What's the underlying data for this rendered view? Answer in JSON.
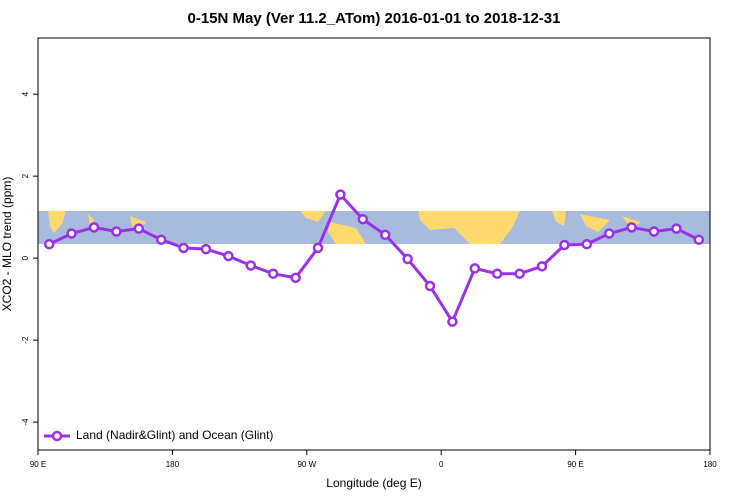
{
  "chart_data": {
    "type": "line",
    "title": "0-15N May (Ver 11.2_ATom)   2016-01-01 to 2018-12-31",
    "xlabel": "Longitude (deg E)",
    "ylabel": "XCO2 - MLO trend (ppm)",
    "x": [
      97.5,
      112.5,
      127.5,
      142.5,
      157.5,
      172.5,
      187.5,
      202.5,
      217.5,
      232.5,
      247.5,
      262.5,
      277.5,
      292.5,
      307.5,
      322.5,
      337.5,
      352.5,
      367.5,
      382.5,
      397.5,
      412.5,
      427.5,
      442.5,
      457.5,
      472.5,
      487.5,
      502.5,
      517.5,
      532.5
    ],
    "series": [
      {
        "name": "Land (Nadir&Glint) and Ocean (Glint)",
        "color": "#9b30e6",
        "values": [
          0.34,
          0.6,
          0.75,
          0.65,
          0.72,
          0.45,
          0.25,
          0.22,
          0.05,
          -0.18,
          -0.38,
          -0.48,
          0.25,
          1.55,
          0.95,
          0.57,
          -0.02,
          -0.68,
          -1.55,
          -0.25,
          -0.38,
          -0.38,
          -0.2,
          0.32,
          0.34,
          0.6,
          0.75,
          0.65,
          0.72,
          0.45
        ]
      }
    ],
    "xlim": [
      90,
      540
    ],
    "xticks": [
      {
        "value": 90,
        "label": "90 E"
      },
      {
        "value": 180,
        "label": "180"
      },
      {
        "value": 270,
        "label": "90 W"
      },
      {
        "value": 360,
        "label": "0"
      },
      {
        "value": 450,
        "label": "90 E"
      },
      {
        "value": 540,
        "label": "180"
      }
    ],
    "ylim": [
      -4.68,
      5.37
    ],
    "yticks": [
      -4,
      -2,
      0,
      2,
      4
    ],
    "legend": "bottom-left"
  }
}
